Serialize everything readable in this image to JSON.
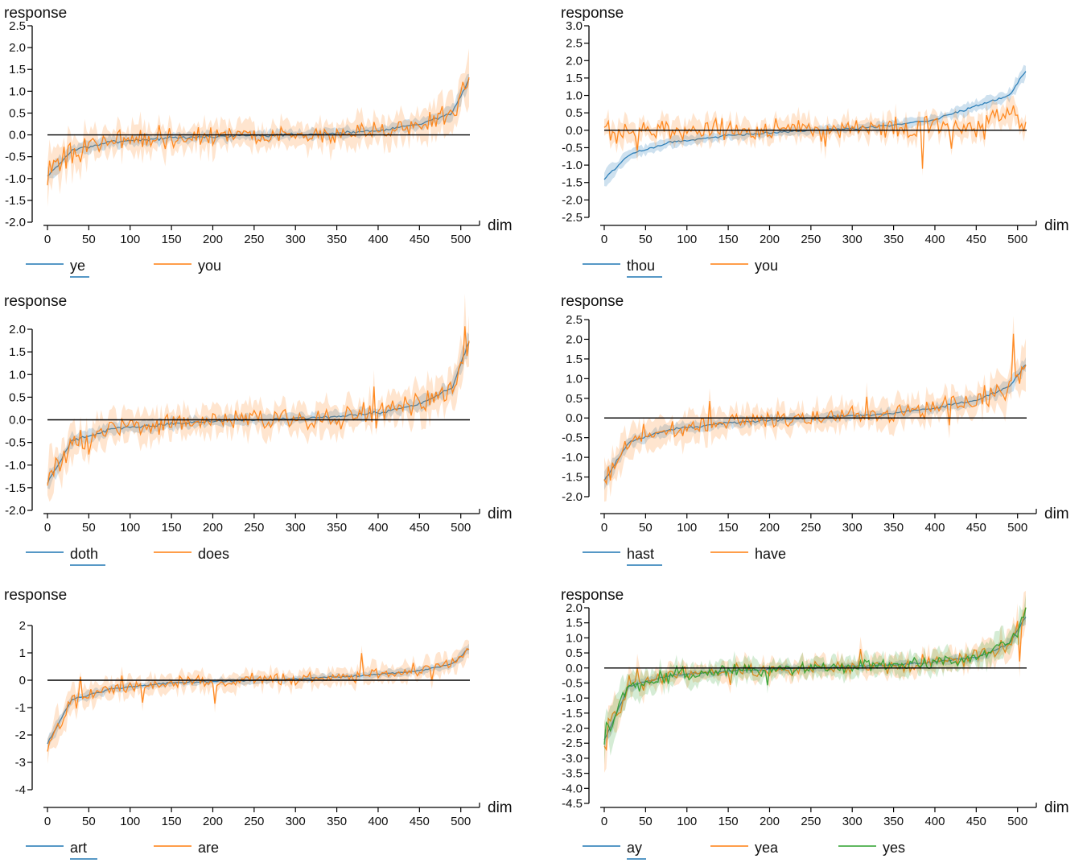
{
  "colors": {
    "blue": "#1f77b4",
    "orange": "#ff7f0e",
    "green": "#2ca02c",
    "zero_line": "#000000"
  },
  "chart_data": [
    {
      "type": "line",
      "ylabel": "response",
      "xlabel": "dim",
      "xlim": [
        0,
        511
      ],
      "ylim": [
        -2.0,
        2.5
      ],
      "xticks": [
        "0",
        "50",
        "100",
        "150",
        "200",
        "250",
        "300",
        "350",
        "400",
        "450",
        "500"
      ],
      "yticks": [
        "2.5",
        "2.0",
        "1.5",
        "1.0",
        "0.5",
        "0.0",
        "-0.5",
        "-1.0",
        "-1.5",
        "-2.0"
      ],
      "grid": false,
      "legend": "bottom-left",
      "zero_line": true,
      "series": [
        {
          "name": "ye",
          "color": "#1f77b4",
          "curve": [
            [
              0,
              -0.95
            ],
            [
              30,
              -0.35
            ],
            [
              80,
              -0.15
            ],
            [
              150,
              -0.07
            ],
            [
              250,
              -0.01
            ],
            [
              300,
              0.0
            ],
            [
              350,
              0.04
            ],
            [
              400,
              0.1
            ],
            [
              450,
              0.25
            ],
            [
              490,
              0.5
            ],
            [
              511,
              1.3
            ]
          ]
        },
        {
          "name": "you",
          "color": "#ff7f0e",
          "curve": [
            [
              0,
              -0.95
            ],
            [
              30,
              -0.35
            ],
            [
              80,
              -0.15
            ],
            [
              150,
              -0.07
            ],
            [
              250,
              -0.01
            ],
            [
              300,
              0.0
            ],
            [
              350,
              0.04
            ],
            [
              400,
              0.1
            ],
            [
              450,
              0.25
            ],
            [
              490,
              0.5
            ],
            [
              511,
              1.3
            ]
          ]
        }
      ]
    },
    {
      "type": "line",
      "ylabel": "response",
      "xlabel": "dim",
      "xlim": [
        0,
        511
      ],
      "ylim": [
        -2.6,
        3.0
      ],
      "xticks": [
        "0",
        "50",
        "100",
        "150",
        "200",
        "250",
        "300",
        "350",
        "400",
        "450",
        "500"
      ],
      "yticks": [
        "3.0",
        "2.5",
        "2.0",
        "1.5",
        "1.0",
        "0.5",
        "0.0",
        "-0.5",
        "-1.0",
        "-1.5",
        "-2.0",
        "-2.5"
      ],
      "grid": false,
      "legend": "bottom-left",
      "zero_line": true,
      "series": [
        {
          "name": "thou",
          "color": "#1f77b4",
          "curve": [
            [
              0,
              -1.4
            ],
            [
              30,
              -0.7
            ],
            [
              80,
              -0.35
            ],
            [
              150,
              -0.15
            ],
            [
              250,
              0.0
            ],
            [
              300,
              0.05
            ],
            [
              350,
              0.15
            ],
            [
              400,
              0.3
            ],
            [
              450,
              0.7
            ],
            [
              490,
              1.0
            ],
            [
              511,
              1.75
            ]
          ]
        },
        {
          "name": "you",
          "color": "#ff7f0e",
          "curve": [
            [
              0,
              -0.1
            ],
            [
              30,
              0.0
            ],
            [
              80,
              0.0
            ],
            [
              150,
              0.0
            ],
            [
              250,
              0.03
            ],
            [
              300,
              0.05
            ],
            [
              350,
              0.1
            ],
            [
              400,
              0.15
            ],
            [
              450,
              0.1
            ],
            [
              490,
              0.5
            ],
            [
              511,
              0.2
            ]
          ]
        }
      ]
    },
    {
      "type": "line",
      "ylabel": "response",
      "xlabel": "dim",
      "xlim": [
        0,
        511
      ],
      "ylim": [
        -2.0,
        2.2
      ],
      "xticks": [
        "0",
        "50",
        "100",
        "150",
        "200",
        "250",
        "300",
        "350",
        "400",
        "450",
        "500"
      ],
      "yticks": [
        "2.0",
        "1.5",
        "1.0",
        "0.5",
        "0.0",
        "-0.5",
        "-1.0",
        "-1.5",
        "-2.0"
      ],
      "grid": false,
      "legend": "bottom-left",
      "zero_line": true,
      "series": [
        {
          "name": "doth",
          "color": "#1f77b4",
          "curve": [
            [
              0,
              -1.4
            ],
            [
              30,
              -0.45
            ],
            [
              80,
              -0.2
            ],
            [
              150,
              -0.08
            ],
            [
              250,
              0.0
            ],
            [
              300,
              0.03
            ],
            [
              350,
              0.07
            ],
            [
              400,
              0.15
            ],
            [
              450,
              0.35
            ],
            [
              490,
              0.7
            ],
            [
              511,
              1.8
            ]
          ]
        },
        {
          "name": "does",
          "color": "#ff7f0e",
          "curve": [
            [
              0,
              -1.4
            ],
            [
              30,
              -0.45
            ],
            [
              80,
              -0.2
            ],
            [
              150,
              -0.08
            ],
            [
              250,
              0.0
            ],
            [
              300,
              0.03
            ],
            [
              350,
              0.07
            ],
            [
              400,
              0.15
            ],
            [
              450,
              0.35
            ],
            [
              490,
              0.7
            ],
            [
              511,
              1.8
            ]
          ]
        }
      ]
    },
    {
      "type": "line",
      "ylabel": "response",
      "xlabel": "dim",
      "xlim": [
        0,
        511
      ],
      "ylim": [
        -2.5,
        2.6
      ],
      "xticks": [
        "0",
        "50",
        "100",
        "150",
        "200",
        "250",
        "300",
        "350",
        "400",
        "450",
        "500"
      ],
      "yticks": [
        "2.5",
        "2.0",
        "1.5",
        "1.0",
        "0.5",
        "0.0",
        "-0.5",
        "-1.0",
        "-1.5",
        "-2.0"
      ],
      "grid": false,
      "legend": "bottom-left",
      "zero_line": true,
      "series": [
        {
          "name": "hast",
          "color": "#1f77b4",
          "curve": [
            [
              0,
              -1.6
            ],
            [
              30,
              -0.6
            ],
            [
              80,
              -0.3
            ],
            [
              150,
              -0.12
            ],
            [
              250,
              0.0
            ],
            [
              300,
              0.05
            ],
            [
              350,
              0.12
            ],
            [
              400,
              0.25
            ],
            [
              450,
              0.45
            ],
            [
              490,
              0.8
            ],
            [
              511,
              1.4
            ]
          ]
        },
        {
          "name": "have",
          "color": "#ff7f0e",
          "curve": [
            [
              0,
              -1.6
            ],
            [
              30,
              -0.6
            ],
            [
              80,
              -0.3
            ],
            [
              150,
              -0.12
            ],
            [
              250,
              0.0
            ],
            [
              300,
              0.05
            ],
            [
              350,
              0.12
            ],
            [
              400,
              0.25
            ],
            [
              450,
              0.45
            ],
            [
              490,
              0.8
            ],
            [
              511,
              1.4
            ]
          ]
        }
      ]
    },
    {
      "type": "line",
      "ylabel": "response",
      "xlabel": "dim",
      "xlim": [
        0,
        511
      ],
      "ylim": [
        -4.5,
        2.7
      ],
      "xticks": [
        "0",
        "50",
        "100",
        "150",
        "200",
        "250",
        "300",
        "350",
        "400",
        "450",
        "500"
      ],
      "yticks": [
        "2",
        "1",
        "0",
        "-1",
        "-2",
        "-3",
        "-4"
      ],
      "grid": false,
      "legend": "bottom-left",
      "zero_line": true,
      "series": [
        {
          "name": "art",
          "color": "#1f77b4",
          "curve": [
            [
              0,
              -2.3
            ],
            [
              30,
              -0.7
            ],
            [
              80,
              -0.3
            ],
            [
              150,
              -0.1
            ],
            [
              250,
              0.0
            ],
            [
              300,
              0.05
            ],
            [
              350,
              0.12
            ],
            [
              400,
              0.2
            ],
            [
              450,
              0.35
            ],
            [
              490,
              0.6
            ],
            [
              511,
              1.2
            ]
          ]
        },
        {
          "name": "are",
          "color": "#ff7f0e",
          "curve": [
            [
              0,
              -2.3
            ],
            [
              30,
              -0.7
            ],
            [
              80,
              -0.3
            ],
            [
              150,
              -0.1
            ],
            [
              250,
              0.0
            ],
            [
              300,
              0.05
            ],
            [
              350,
              0.12
            ],
            [
              400,
              0.2
            ],
            [
              450,
              0.35
            ],
            [
              490,
              0.6
            ],
            [
              511,
              1.2
            ]
          ]
        }
      ]
    },
    {
      "type": "line",
      "ylabel": "response",
      "xlabel": "dim",
      "xlim": [
        0,
        511
      ],
      "ylim": [
        -4.5,
        2.0
      ],
      "xticks": [
        "0",
        "50",
        "100",
        "150",
        "200",
        "250",
        "300",
        "350",
        "400",
        "450",
        "500"
      ],
      "yticks": [
        "2.0",
        "1.5",
        "1.0",
        "0.5",
        "0.0",
        "-0.5",
        "-1.0",
        "-1.5",
        "-2.0",
        "-2.5",
        "-3.0",
        "-3.5",
        "-4.0",
        "-4.5"
      ],
      "grid": false,
      "legend": "bottom-left",
      "zero_line": true,
      "series": [
        {
          "name": "ay",
          "color": "#1f77b4",
          "curve": [
            [
              0,
              -2.4
            ],
            [
              30,
              -0.6
            ],
            [
              80,
              -0.25
            ],
            [
              150,
              -0.1
            ],
            [
              250,
              0.0
            ],
            [
              300,
              0.05
            ],
            [
              350,
              0.1
            ],
            [
              400,
              0.2
            ],
            [
              450,
              0.35
            ],
            [
              490,
              0.8
            ],
            [
              511,
              1.75
            ]
          ]
        },
        {
          "name": "yea",
          "color": "#ff7f0e",
          "curve": [
            [
              0,
              -2.4
            ],
            [
              30,
              -0.6
            ],
            [
              80,
              -0.25
            ],
            [
              150,
              -0.1
            ],
            [
              250,
              0.0
            ],
            [
              300,
              0.05
            ],
            [
              350,
              0.1
            ],
            [
              400,
              0.2
            ],
            [
              450,
              0.35
            ],
            [
              490,
              0.8
            ],
            [
              511,
              1.75
            ]
          ]
        },
        {
          "name": "yes",
          "color": "#2ca02c",
          "curve": [
            [
              0,
              -2.4
            ],
            [
              30,
              -0.6
            ],
            [
              80,
              -0.25
            ],
            [
              150,
              -0.1
            ],
            [
              250,
              0.0
            ],
            [
              300,
              0.05
            ],
            [
              350,
              0.1
            ],
            [
              400,
              0.2
            ],
            [
              450,
              0.35
            ],
            [
              490,
              0.8
            ],
            [
              511,
              1.75
            ]
          ]
        }
      ]
    }
  ]
}
